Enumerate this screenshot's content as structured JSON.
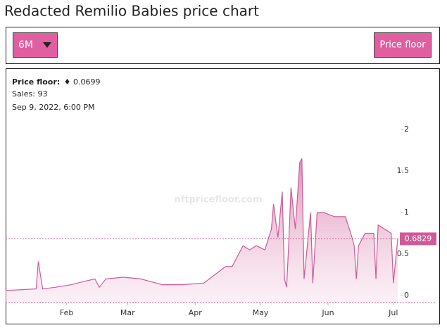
{
  "header": {
    "title": "Redacted Remilio Babies price chart"
  },
  "controls": {
    "range": "6M",
    "metric": "Price floor"
  },
  "watermark": "nftpricefloor.com",
  "tooltip": {
    "label": "Price floor:",
    "value": 0.0699,
    "sales_label": "Sales:",
    "sales": 93,
    "date": "Sep 9, 2022, 6:00 PM"
  },
  "chart_data": {
    "type": "area",
    "x": [
      4,
      11,
      18,
      19,
      21,
      27,
      34,
      40,
      45,
      47,
      50,
      58,
      66,
      76,
      85,
      95,
      100,
      105,
      108,
      111,
      113,
      116,
      119,
      123,
      126,
      127,
      129,
      131,
      132,
      133,
      134,
      135,
      137,
      139,
      140,
      141,
      144,
      145,
      147,
      150,
      155,
      160,
      163,
      164,
      165,
      166,
      169,
      173,
      174,
      175,
      181,
      182,
      184
    ],
    "series": [
      {
        "name": "Price floor",
        "color": "#d05a98",
        "values": [
          0.06,
          0.07,
          0.08,
          0.41,
          0.08,
          0.1,
          0.13,
          0.17,
          0.2,
          0.1,
          0.2,
          0.22,
          0.2,
          0.13,
          0.13,
          0.15,
          0.25,
          0.35,
          0.35,
          0.5,
          0.6,
          0.55,
          0.6,
          0.55,
          0.8,
          1.1,
          0.7,
          1.25,
          0.2,
          0.1,
          0.65,
          1.3,
          0.8,
          1.6,
          1.65,
          0.2,
          1.0,
          0.15,
          1.0,
          1.0,
          0.95,
          0.95,
          0.7,
          0.6,
          0.2,
          0.6,
          0.75,
          0.75,
          0.2,
          0.85,
          0.75,
          0.15,
          0.68
        ]
      }
    ],
    "current_value": 0.6829,
    "xlim": [
      4,
      184
    ],
    "xticks": [
      {
        "value": 32,
        "label": "Feb"
      },
      {
        "value": 60,
        "label": "Mar"
      },
      {
        "value": 91,
        "label": "Apr"
      },
      {
        "value": 121,
        "label": "May"
      },
      {
        "value": 152,
        "label": "Jun"
      },
      {
        "value": 182,
        "label": "Jul"
      }
    ],
    "ylim": [
      0,
      2
    ],
    "yticks": [
      0,
      0.5,
      1,
      1.5,
      2
    ]
  }
}
